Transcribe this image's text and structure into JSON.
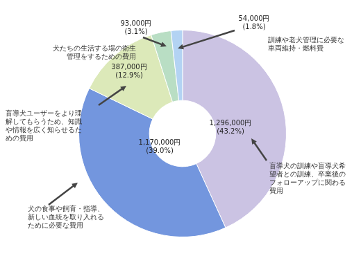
{
  "chart_data": {
    "type": "doughnut",
    "categories": [
      "盲導犬の訓練や盲導犬希望者との訓練、卒業後のフォローアップに関わる費用",
      "犬の食事や飼育・指導、新しい血統を取り入れるために必要な費用",
      "盲導犬ユーザーをより理解してもらうため、知識や情報を広く知らせるための費用",
      "犬たちの生活する場の衛生管理をするための費用",
      "訓練や老犬管理に必要な車両維持・燃料費"
    ],
    "values": [
      1296000,
      1170000,
      387000,
      93000,
      54000
    ],
    "value_labels": [
      "1,296,000円",
      "1,170,000円",
      "387,000円",
      "93,000円",
      "54,000円"
    ],
    "percent_labels": [
      "(43.2%)",
      "(39.0%)",
      "(12.9%)",
      "(3.1%)",
      "(1.8%)"
    ],
    "colors": [
      "#cbc3e3",
      "#7396de",
      "#dce9b9",
      "#b9dec4",
      "#b3d3f3"
    ],
    "data_labels": true
  }
}
